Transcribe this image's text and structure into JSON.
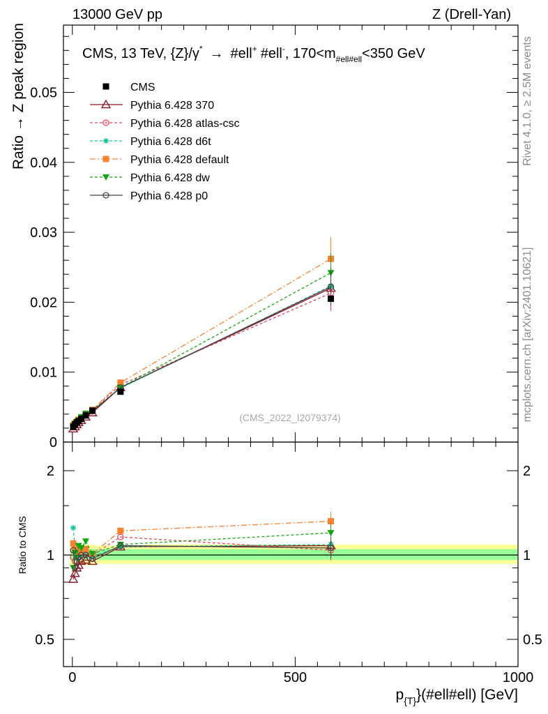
{
  "header": {
    "left": "13000 GeV pp",
    "right": "Z (Drell-Yan)"
  },
  "side": {
    "rivet": "Rivet 4.1.0, ≥ 2.5M events",
    "mcplots": "mcplots.cern.ch [arXiv:2401.10621]"
  },
  "plot_title": {
    "main": "CMS, 13 TeV, {Z}/γ",
    "star": "*",
    "arrow": "→",
    "ell1": "#ell",
    "plus": "+",
    "ell2": "#ell",
    "minus": "-",
    "range_left": ", 170<m",
    "subscript": "#ell#ell",
    "range_right": "<350 GeV"
  },
  "watermark": "(CMS_2022_I2079374)",
  "axes": {
    "ylabel_top": "Ratio → Z peak region",
    "ylabel_bottom": "Ratio to CMS",
    "xlabel": "p",
    "xlabel_sub": "{T}",
    "xlabel_rest": "}(#ell#ell) [GeV]"
  },
  "chart_data": {
    "type": "line",
    "x": [
      2,
      6,
      10,
      14,
      20,
      30,
      45,
      108,
      580
    ],
    "xlim": [
      -20,
      1000
    ],
    "xticks": [
      0,
      500,
      1000
    ],
    "xtick_labels": [
      "0",
      "500",
      "1000"
    ],
    "ylim": [
      0,
      0.06
    ],
    "yticks": [
      0,
      0.01,
      0.02,
      0.03,
      0.04,
      0.05
    ],
    "ytick_labels": [
      "0",
      "0.01",
      "0.02",
      "0.03",
      "0.04",
      "0.05"
    ],
    "ratio_ylim": [
      0.35,
      2.3
    ],
    "ratio_yticks": [
      0.5,
      1,
      2
    ],
    "ratio_ytick_labels": [
      "0.5",
      "1",
      "2"
    ],
    "series": [
      {
        "name": "CMS",
        "color": "#000000",
        "marker": "square",
        "dash": "none",
        "values": [
          0.0022,
          0.0025,
          0.0028,
          0.003,
          0.0033,
          0.0038,
          0.0045,
          0.0072,
          0.0205
        ],
        "ratio": [
          1,
          1,
          1,
          1,
          1,
          1,
          1,
          1,
          1
        ]
      },
      {
        "name": "Pythia 6.428 370",
        "color": "#8b1a2b",
        "marker": "triangle-open",
        "dash": "solid",
        "values": [
          0.0019,
          0.0022,
          0.0025,
          0.0028,
          0.0031,
          0.0036,
          0.0042,
          0.0078,
          0.022
        ],
        "ratio": [
          0.82,
          0.86,
          0.9,
          0.92,
          0.95,
          0.96,
          0.95,
          1.07,
          1.08
        ]
      },
      {
        "name": "Pythia 6.428 atlas-csc",
        "color": "#e8435a",
        "marker": "circle-open",
        "dash": "dashed",
        "values": [
          0.0023,
          0.0026,
          0.0029,
          0.0031,
          0.0034,
          0.0039,
          0.0046,
          0.0082,
          0.0213
        ],
        "ratio": [
          0.98,
          0.95,
          1.0,
          1.02,
          1.0,
          1.03,
          1.0,
          1.16,
          1.04
        ]
      },
      {
        "name": "Pythia 6.428 d6t",
        "color": "#18c49a",
        "marker": "star",
        "dash": "dashed",
        "values": [
          0.0026,
          0.0028,
          0.003,
          0.0032,
          0.0035,
          0.004,
          0.0045,
          0.0077,
          0.0223
        ],
        "ratio": [
          1.25,
          1.05,
          0.97,
          1.0,
          1.0,
          1.03,
          0.99,
          1.07,
          1.09
        ]
      },
      {
        "name": "Pythia 6.428 default",
        "color": "#f58231",
        "marker": "square",
        "dash": "dashdot",
        "values": [
          0.0024,
          0.0027,
          0.0029,
          0.0032,
          0.0035,
          0.004,
          0.0046,
          0.0085,
          0.0262
        ],
        "ratio": [
          1.1,
          1.05,
          1.02,
          1.06,
          1.03,
          1.05,
          1.01,
          1.22,
          1.32
        ]
      },
      {
        "name": "Pythia 6.428 dw",
        "color": "#13a813",
        "marker": "triangle-down",
        "dash": "dashed",
        "values": [
          0.0022,
          0.0026,
          0.0029,
          0.0031,
          0.0036,
          0.0041,
          0.0045,
          0.0078,
          0.0242
        ],
        "ratio": [
          0.9,
          1.02,
          0.98,
          1.08,
          1.06,
          1.12,
          1.01,
          1.09,
          1.2
        ]
      },
      {
        "name": "Pythia 6.428 p0",
        "color": "#444444",
        "marker": "circle-open",
        "dash": "solid",
        "values": [
          0.0023,
          0.0026,
          0.0028,
          0.003,
          0.0034,
          0.0039,
          0.0044,
          0.0078,
          0.0222
        ],
        "ratio": [
          1.04,
          0.9,
          0.95,
          0.98,
          1.0,
          1.0,
          0.97,
          1.08,
          1.06
        ]
      }
    ],
    "uncertainty_bands": [
      {
        "x": [
          -5,
          50
        ],
        "inner": [
          0.96,
          1.05
        ],
        "outer": [
          0.92,
          1.09
        ]
      },
      {
        "x": [
          50,
          160
        ],
        "inner": [
          0.96,
          1.05
        ],
        "outer": [
          0.93,
          1.08
        ]
      },
      {
        "x": [
          160,
          1000
        ],
        "inner": [
          0.96,
          1.05
        ],
        "outer": [
          0.93,
          1.09
        ]
      }
    ]
  }
}
